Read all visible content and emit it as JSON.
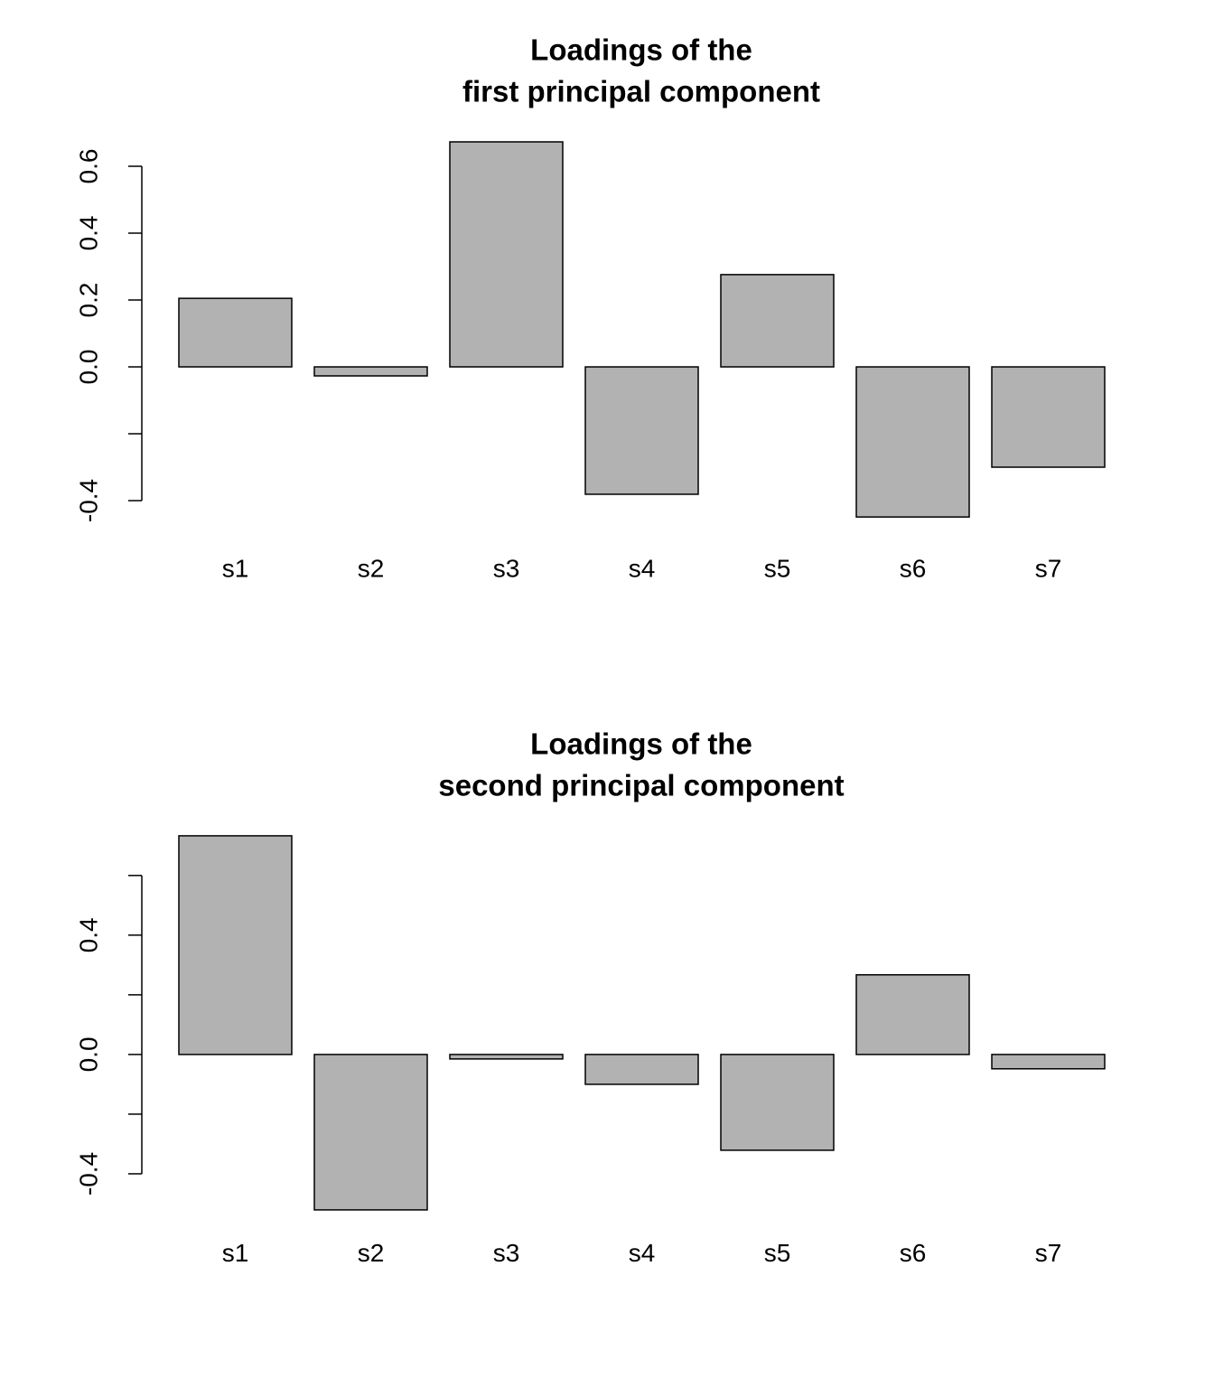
{
  "chart_data": [
    {
      "type": "bar",
      "title": [
        "Loadings of the",
        "first principal component"
      ],
      "categories": [
        "s1",
        "s2",
        "s3",
        "s4",
        "s5",
        "s6",
        "s7"
      ],
      "values": [
        0.205,
        -0.027,
        0.673,
        -0.381,
        0.276,
        -0.449,
        -0.3
      ],
      "color": "#b2b2b2",
      "ylim": [
        -0.5,
        0.7
      ],
      "yticks": [
        {
          "value": -0.4,
          "label": "-0.4"
        },
        {
          "value": -0.2,
          "label": null
        },
        {
          "value": 0,
          "label": "0.0"
        },
        {
          "value": 0.2,
          "label": "0.2"
        },
        {
          "value": 0.4,
          "label": "0.4"
        },
        {
          "value": 0.6,
          "label": "0.6"
        }
      ]
    },
    {
      "type": "bar",
      "title": [
        "Loadings of the",
        "second principal component"
      ],
      "categories": [
        "s1",
        "s2",
        "s3",
        "s4",
        "s5",
        "s6",
        "s7"
      ],
      "values": [
        0.733,
        -0.521,
        -0.015,
        -0.1,
        -0.321,
        0.267,
        -0.048
      ],
      "color": "#b2b2b2",
      "ylim": [
        -0.55,
        0.76
      ],
      "yticks": [
        {
          "value": -0.4,
          "label": "-0.4"
        },
        {
          "value": -0.2,
          "label": null
        },
        {
          "value": 0,
          "label": "0.0"
        },
        {
          "value": 0.2,
          "label": null
        },
        {
          "value": 0.4,
          "label": "0.4"
        },
        {
          "value": 0.6,
          "label": null
        }
      ]
    }
  ]
}
